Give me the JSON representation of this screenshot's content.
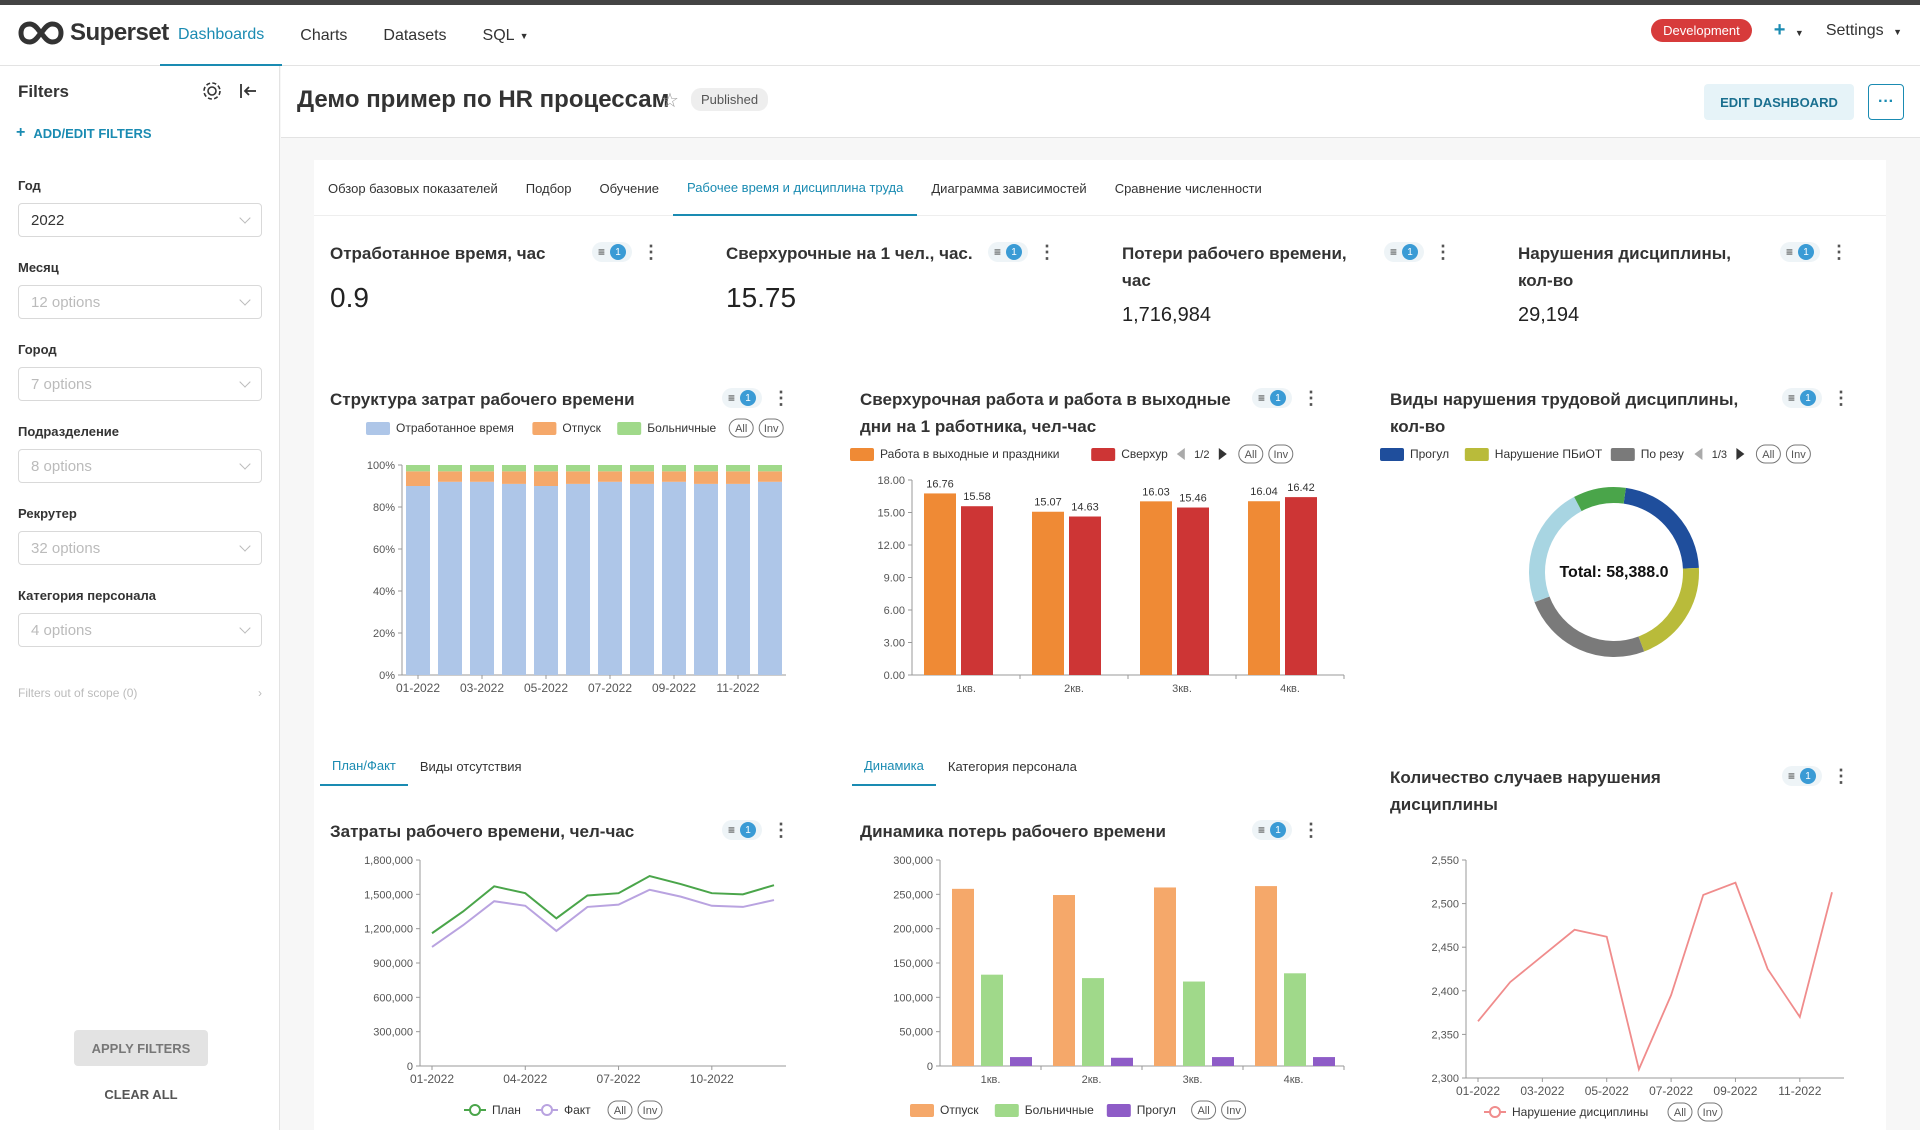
{
  "nav": {
    "logo": "Superset",
    "items": [
      {
        "label": "Dashboards",
        "active": true
      },
      {
        "label": "Charts",
        "active": false
      },
      {
        "label": "Datasets",
        "active": false
      },
      {
        "label": "SQL",
        "active": false
      }
    ],
    "env": "Development",
    "plus": "+",
    "settings": "Settings"
  },
  "sidebar": {
    "title": "Filters",
    "add_filters": "ADD/EDIT FILTERS",
    "filters": [
      {
        "label": "Год",
        "value": "2022",
        "placeholder": false
      },
      {
        "label": "Месяц",
        "value": "12 options",
        "placeholder": true
      },
      {
        "label": "Город",
        "value": "7 options",
        "placeholder": true
      },
      {
        "label": "Подразделение",
        "value": "8 options",
        "placeholder": true
      },
      {
        "label": "Рекрутер",
        "value": "32 options",
        "placeholder": true
      },
      {
        "label": "Категория персонала",
        "value": "4 options",
        "placeholder": true
      }
    ],
    "out_of_scope": "Filters out of scope (0)",
    "apply": "APPLY FILTERS",
    "clear": "CLEAR ALL"
  },
  "header": {
    "title": "Демо пример по HR процессам",
    "status": "Published",
    "edit": "EDIT DASHBOARD",
    "more": "···"
  },
  "tabs": [
    {
      "label": "Обзор базовых показателей",
      "active": false
    },
    {
      "label": "Подбор",
      "active": false
    },
    {
      "label": "Обучение",
      "active": false
    },
    {
      "label": "Рабочее время и дисциплина труда",
      "active": true
    },
    {
      "label": "Диаграмма зависимостей",
      "active": false
    },
    {
      "label": "Сравнение численности",
      "active": false
    }
  ],
  "kpis": [
    {
      "title": "Отработанное время, час",
      "value": "0.9",
      "badge": "1"
    },
    {
      "title": "Сверхурочные на 1 чел., час.",
      "value": "15.75",
      "badge": "1"
    },
    {
      "title": "Потери рабочего времени, час",
      "value": "1,716,984",
      "badge": "1"
    },
    {
      "title": "Нарушения дисциплины, кол-во",
      "value": "29,194",
      "badge": "1"
    }
  ],
  "subtabs_left": [
    {
      "label": "План/Факт",
      "active": true
    },
    {
      "label": "Виды отсутствия",
      "active": false
    }
  ],
  "subtabs_mid": [
    {
      "label": "Динамика",
      "active": true
    },
    {
      "label": "Категория персонала",
      "active": false
    }
  ],
  "charts": {
    "structure": {
      "title": "Структура затрат рабочего времени",
      "badge": "1",
      "legend": [
        "Отработанное время",
        "Отпуск",
        "Больничные"
      ],
      "all": "All",
      "inv": "Inv"
    },
    "overtime": {
      "title": "Сверхурочная работа и работа в выходные дни на 1 работника, чел-час",
      "badge": "1",
      "legend": [
        "Работа в выходные и праздники",
        "Сверхур"
      ],
      "pager": "1/2",
      "all": "All",
      "inv": "Inv"
    },
    "violations": {
      "title": "Виды нарушения трудовой дисциплины, кол-во",
      "badge": "1",
      "legend": [
        "Прогул",
        "Нарушение ПБиОТ",
        "По резу"
      ],
      "pager": "1/3",
      "total": "Total: 58,388.0",
      "all": "All",
      "inv": "Inv"
    },
    "costs": {
      "title": "Затраты рабочего времени, чел-час",
      "badge": "1",
      "legend": [
        "План",
        "Факт"
      ],
      "all": "All",
      "inv": "Inv"
    },
    "losses": {
      "title": "Динамика потерь рабочего времени",
      "badge": "1",
      "legend": [
        "Отпуск",
        "Больничные",
        "Прогул"
      ],
      "all": "All",
      "inv": "Inv"
    },
    "cases": {
      "title": "Количество случаев нарушения дисциплины",
      "badge": "1",
      "legend": [
        "Нарушение дисциплины"
      ],
      "all": "All",
      "inv": "Inv"
    }
  },
  "colors": {
    "accent": "#1a8bb2",
    "blue_bar": "#aec6e8",
    "orange": "#f5a86a",
    "green": "#a0d98a",
    "orange2": "#ef8a35",
    "red": "#cd3535",
    "navy": "#1f4e9c",
    "olive": "#b9bb3a",
    "gray": "#7a7a7a",
    "lightblue": "#a8d5e2",
    "green2": "#4aa54a",
    "plan": "#4aa54a",
    "fact": "#b9a3e0",
    "purple": "#8e5cc7",
    "pink": "#f08c8c"
  },
  "chart_data": [
    {
      "type": "bar",
      "stacked": true,
      "title": "Структура затрат рабочего времени",
      "categories": [
        "01-2022",
        "02-2022",
        "03-2022",
        "04-2022",
        "05-2022",
        "06-2022",
        "07-2022",
        "08-2022",
        "09-2022",
        "10-2022",
        "11-2022",
        "12-2022"
      ],
      "x_tick_labels": [
        "01-2022",
        "03-2022",
        "05-2022",
        "07-2022",
        "09-2022",
        "11-2022"
      ],
      "series": [
        {
          "name": "Отработанное время",
          "values": [
            90,
            92,
            92,
            91,
            90,
            91,
            92,
            91,
            92,
            91,
            91,
            92
          ]
        },
        {
          "name": "Отпуск",
          "values": [
            7,
            5,
            5,
            6,
            7,
            6,
            5,
            6,
            5,
            6,
            6,
            5
          ]
        },
        {
          "name": "Больничные",
          "values": [
            3,
            3,
            3,
            3,
            3,
            3,
            3,
            3,
            3,
            3,
            3,
            3
          ]
        }
      ],
      "y_tick_labels": [
        "0%",
        "20%",
        "40%",
        "60%",
        "80%",
        "100%"
      ],
      "ylim": [
        0,
        100
      ]
    },
    {
      "type": "bar",
      "title": "Сверхурочная работа и работа в выходные дни на 1 работника, чел-час",
      "categories": [
        "1кв.",
        "2кв.",
        "3кв.",
        "4кв."
      ],
      "series": [
        {
          "name": "Работа в выходные и праздники",
          "values": [
            16.76,
            15.07,
            16.03,
            16.04
          ]
        },
        {
          "name": "Сверхур",
          "values": [
            15.58,
            14.63,
            15.46,
            16.42
          ]
        }
      ],
      "y_tick_labels": [
        "0.00",
        "3.00",
        "6.00",
        "9.00",
        "12.00",
        "15.00",
        "18.00"
      ],
      "ylim": [
        0,
        18
      ]
    },
    {
      "type": "pie",
      "title": "Виды нарушения трудовой дисциплины, кол-во",
      "donut": true,
      "total": 58388.0,
      "slices": [
        {
          "name": "Прогул",
          "value": 0.22
        },
        {
          "name": "Нарушение ПБиОТ",
          "value": 0.2
        },
        {
          "name": "По резу",
          "value": 0.25
        },
        {
          "name": "",
          "value": 0.23
        },
        {
          "name": "",
          "value": 0.1
        }
      ]
    },
    {
      "type": "line",
      "title": "Затраты рабочего времени, чел-час",
      "x": [
        "01-2022",
        "02-2022",
        "03-2022",
        "04-2022",
        "05-2022",
        "06-2022",
        "07-2022",
        "08-2022",
        "09-2022",
        "10-2022",
        "11-2022",
        "12-2022"
      ],
      "x_tick_labels": [
        "01-2022",
        "04-2022",
        "07-2022",
        "10-2022"
      ],
      "series": [
        {
          "name": "План",
          "values": [
            1160000,
            1350000,
            1570000,
            1510000,
            1290000,
            1490000,
            1510000,
            1660000,
            1590000,
            1510000,
            1500000,
            1580000
          ]
        },
        {
          "name": "Факт",
          "values": [
            1040000,
            1230000,
            1440000,
            1400000,
            1180000,
            1390000,
            1410000,
            1540000,
            1480000,
            1400000,
            1390000,
            1450000
          ]
        }
      ],
      "y_tick_labels": [
        "0",
        "300,000",
        "600,000",
        "900,000",
        "1,200,000",
        "1,500,000",
        "1,800,000"
      ],
      "ylim": [
        0,
        1800000
      ]
    },
    {
      "type": "bar",
      "title": "Динамика потерь рабочего времени",
      "categories": [
        "1кв.",
        "2кв.",
        "3кв.",
        "4кв."
      ],
      "series": [
        {
          "name": "Отпуск",
          "values": [
            258000,
            249000,
            260000,
            262000
          ]
        },
        {
          "name": "Больничные",
          "values": [
            133000,
            128000,
            123000,
            135000
          ]
        },
        {
          "name": "Прогул",
          "values": [
            13000,
            12000,
            13000,
            13000
          ]
        }
      ],
      "y_tick_labels": [
        "0",
        "50,000",
        "100,000",
        "150,000",
        "200,000",
        "250,000",
        "300,000"
      ],
      "ylim": [
        0,
        300000
      ]
    },
    {
      "type": "line",
      "title": "Количество случаев нарушения дисциплины",
      "x": [
        "01-2022",
        "02-2022",
        "03-2022",
        "04-2022",
        "05-2022",
        "06-2022",
        "07-2022",
        "08-2022",
        "09-2022",
        "10-2022",
        "11-2022",
        "12-2022"
      ],
      "x_tick_labels": [
        "01-2022",
        "03-2022",
        "05-2022",
        "07-2022",
        "09-2022",
        "11-2022"
      ],
      "series": [
        {
          "name": "Нарушение дисциплины",
          "values": [
            2365,
            2410,
            2440,
            2470,
            2462,
            2310,
            2395,
            2510,
            2524,
            2425,
            2370,
            2513
          ]
        }
      ],
      "y_tick_labels": [
        "2,300",
        "2,350",
        "2,400",
        "2,450",
        "2,500",
        "2,550"
      ],
      "ylim": [
        2300,
        2550
      ]
    }
  ]
}
